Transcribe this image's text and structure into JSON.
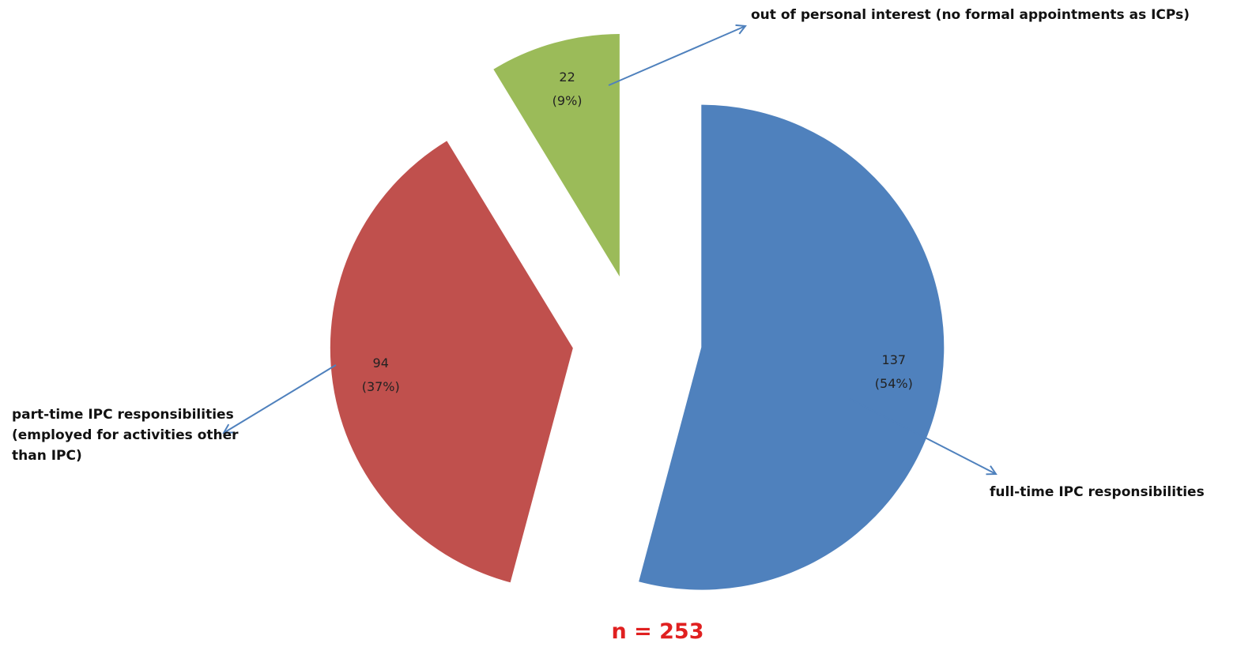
{
  "chart_data": {
    "type": "pie",
    "categories": [
      "full-time IPC responsibilities",
      "part-time IPC responsibilities (employed for activities other than IPC)",
      "out of personal interest (no formal appointments as ICPs)"
    ],
    "values": [
      137,
      94,
      22
    ],
    "value_labels": [
      [
        "137",
        "(54%)"
      ],
      [
        "94",
        "(37%)"
      ],
      [
        "22",
        "(9%)"
      ]
    ],
    "colors": [
      "#4f81bd",
      "#c0504d",
      "#9bbb59"
    ],
    "exploded": true,
    "annotation": "n = 253"
  }
}
